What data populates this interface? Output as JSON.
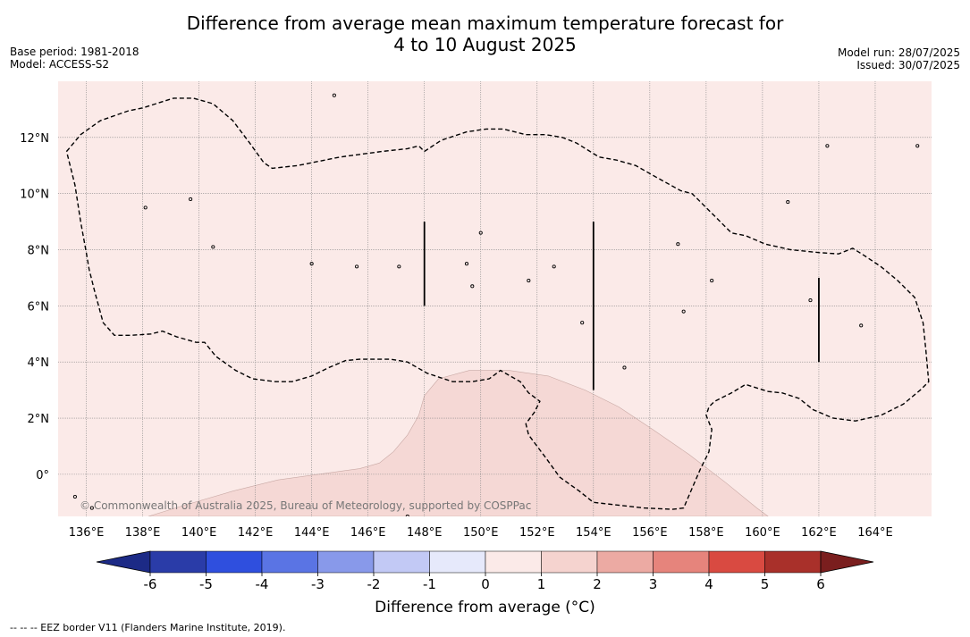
{
  "title_line1": "Difference from average mean maximum temperature forecast for",
  "title_line2": "4 to 10 August 2025",
  "base_period": "Base period: 1981-2018",
  "model": "Model: ACCESS-S2",
  "model_run": "Model run: 28/07/2025",
  "issued": "Issued: 30/07/2025",
  "copyright": "© Commonwealth of Australia 2025, Bureau of Meteorology, supported by COSPPac",
  "footnote": "--  --  -- EEZ border V11 (Flanders Marine Institute, 2019).",
  "colorbar_label": "Difference from average (°C)",
  "colors": {
    "background_anomaly": "#fbeae8",
    "warm_anomaly": "#f5d8d5",
    "colorbar": [
      "#2a3ca8",
      "#2f4fde",
      "#5a74e4",
      "#8899ea",
      "#c2c9f5",
      "#e6e9fb",
      "#fbeae8",
      "#f5d3cf",
      "#ecaaa3",
      "#e6847c",
      "#d94a41",
      "#a9302a"
    ],
    "extend_low": "#1c2a86",
    "extend_high": "#7a1e1e"
  },
  "map": {
    "lon_range": [
      135,
      166
    ],
    "lat_range": [
      -1.5,
      14
    ],
    "lon_ticks": [
      "136°E",
      "138°E",
      "140°E",
      "142°E",
      "144°E",
      "146°E",
      "148°E",
      "150°E",
      "152°E",
      "154°E",
      "156°E",
      "158°E",
      "160°E",
      "162°E",
      "164°E"
    ],
    "lon_values": [
      136,
      138,
      140,
      142,
      144,
      146,
      148,
      150,
      152,
      154,
      156,
      158,
      160,
      162,
      164
    ],
    "lat_ticks": [
      "12°N",
      "10°N",
      "8°N",
      "6°N",
      "4°N",
      "2°N",
      "0°"
    ],
    "lat_values": [
      12,
      10,
      8,
      6,
      4,
      2,
      0
    ],
    "eez_border": [
      [
        135.3,
        11.5
      ],
      [
        135.8,
        12.1
      ],
      [
        136.5,
        12.6
      ],
      [
        137.5,
        12.95
      ],
      [
        138,
        13.05
      ],
      [
        139.1,
        13.4
      ],
      [
        139.8,
        13.4
      ],
      [
        140.5,
        13.2
      ],
      [
        141.2,
        12.6
      ],
      [
        141.8,
        11.8
      ],
      [
        142.3,
        11.1
      ],
      [
        142.6,
        10.9
      ],
      [
        143.5,
        11
      ],
      [
        145,
        11.3
      ],
      [
        146.5,
        11.5
      ],
      [
        147.4,
        11.6
      ],
      [
        147.8,
        11.7
      ],
      [
        148,
        11.5
      ],
      [
        148.6,
        11.9
      ],
      [
        149.5,
        12.2
      ],
      [
        150.2,
        12.3
      ],
      [
        150.8,
        12.3
      ],
      [
        151.6,
        12.1
      ],
      [
        152.3,
        12.1
      ],
      [
        152.9,
        12
      ],
      [
        153.4,
        11.8
      ],
      [
        154.2,
        11.3
      ],
      [
        154.8,
        11.2
      ],
      [
        155.5,
        11
      ],
      [
        156.2,
        10.6
      ],
      [
        157.1,
        10.1
      ],
      [
        157.5,
        10
      ],
      [
        157.8,
        9.7
      ],
      [
        158.3,
        9.2
      ],
      [
        158.9,
        8.6
      ],
      [
        159.4,
        8.5
      ],
      [
        160.1,
        8.2
      ],
      [
        161,
        8
      ],
      [
        162,
        7.9
      ],
      [
        162.7,
        7.85
      ],
      [
        163.2,
        8.05
      ],
      [
        163.6,
        7.8
      ],
      [
        164.2,
        7.4
      ],
      [
        164.8,
        6.9
      ],
      [
        165.4,
        6.3
      ],
      [
        165.7,
        5.4
      ],
      [
        165.8,
        4.4
      ],
      [
        165.9,
        3.3
      ],
      [
        165.6,
        3
      ],
      [
        165,
        2.5
      ],
      [
        164.2,
        2.1
      ],
      [
        163.3,
        1.9
      ],
      [
        162.5,
        2
      ],
      [
        161.8,
        2.3
      ],
      [
        161.3,
        2.7
      ],
      [
        160.7,
        2.9
      ],
      [
        160.2,
        2.95
      ],
      [
        159.4,
        3.2
      ],
      [
        158.9,
        2.9
      ],
      [
        158.3,
        2.6
      ],
      [
        158.1,
        2.4
      ],
      [
        158,
        2.1
      ],
      [
        158.2,
        1.6
      ],
      [
        158.1,
        0.8
      ],
      [
        157.8,
        0.2
      ],
      [
        157.5,
        -0.5
      ],
      [
        157.2,
        -1.2
      ],
      [
        156.8,
        -1.25
      ],
      [
        155.8,
        -1.2
      ],
      [
        154,
        -1
      ],
      [
        153.5,
        -0.6
      ],
      [
        152.8,
        -0.1
      ],
      [
        152.3,
        0.6
      ],
      [
        151.7,
        1.4
      ],
      [
        151.6,
        1.8
      ],
      [
        151.9,
        2.2
      ],
      [
        152.1,
        2.6
      ],
      [
        151.7,
        2.9
      ],
      [
        151.4,
        3.3
      ],
      [
        150.7,
        3.7
      ],
      [
        150.3,
        3.4
      ],
      [
        149.7,
        3.3
      ],
      [
        149,
        3.3
      ],
      [
        148.1,
        3.6
      ],
      [
        147.4,
        4
      ],
      [
        146.8,
        4.1
      ],
      [
        146.3,
        4.1
      ],
      [
        145.7,
        4.1
      ],
      [
        145.2,
        4.05
      ],
      [
        144.6,
        3.8
      ],
      [
        144,
        3.5
      ],
      [
        143.3,
        3.3
      ],
      [
        142.7,
        3.3
      ],
      [
        141.9,
        3.4
      ],
      [
        141.3,
        3.7
      ],
      [
        140.6,
        4.2
      ],
      [
        140.2,
        4.7
      ],
      [
        139.9,
        4.7
      ],
      [
        139.2,
        4.9
      ],
      [
        138.7,
        5.1
      ],
      [
        138.3,
        5
      ],
      [
        137.6,
        4.95
      ],
      [
        137,
        4.95
      ],
      [
        136.6,
        5.4
      ],
      [
        136.3,
        6.5
      ],
      [
        136.1,
        7.3
      ],
      [
        136,
        7.9
      ],
      [
        135.8,
        9
      ],
      [
        135.6,
        10.3
      ],
      [
        135.3,
        11.5
      ]
    ],
    "warm_region": [
      [
        138.2,
        -1.5
      ],
      [
        139.5,
        -1.1
      ],
      [
        141.2,
        -0.6
      ],
      [
        142.8,
        -0.2
      ],
      [
        144.6,
        0.05
      ],
      [
        145.7,
        0.2
      ],
      [
        146.4,
        0.4
      ],
      [
        146.9,
        0.8
      ],
      [
        147.4,
        1.4
      ],
      [
        147.8,
        2.1
      ],
      [
        148.0,
        2.8
      ],
      [
        148.5,
        3.4
      ],
      [
        149.6,
        3.7
      ],
      [
        151.0,
        3.7
      ],
      [
        152.4,
        3.5
      ],
      [
        153.7,
        3.0
      ],
      [
        154.9,
        2.4
      ],
      [
        156.1,
        1.6
      ],
      [
        157.4,
        0.7
      ],
      [
        158.7,
        -0.3
      ],
      [
        159.8,
        -1.2
      ],
      [
        160.2,
        -1.5
      ]
    ],
    "vertical_lines": [
      [
        [
          148,
          9
        ],
        [
          148,
          6
        ]
      ],
      [
        [
          154,
          9
        ],
        [
          154,
          3
        ]
      ],
      [
        [
          162,
          7
        ],
        [
          162,
          4
        ]
      ]
    ],
    "islands": [
      [
        144.8,
        13.5
      ],
      [
        138.1,
        9.5
      ],
      [
        152.6,
        7.4
      ],
      [
        158.2,
        6.9
      ],
      [
        163.5,
        5.3
      ],
      [
        153.6,
        5.4
      ],
      [
        147.4,
        -1.5
      ],
      [
        135.6,
        -0.8
      ],
      [
        136.2,
        -1.2
      ],
      [
        157,
        8.2
      ],
      [
        140.5,
        8.1
      ],
      [
        145.6,
        7.4
      ],
      [
        147.1,
        7.4
      ],
      [
        149.5,
        7.5
      ],
      [
        151.7,
        6.9
      ],
      [
        149.7,
        6.7
      ],
      [
        161.7,
        6.2
      ],
      [
        157.2,
        5.8
      ],
      [
        155.1,
        3.8
      ],
      [
        162.3,
        11.7
      ],
      [
        165.5,
        11.7
      ],
      [
        160.9,
        9.7
      ],
      [
        139.7,
        9.8
      ],
      [
        150,
        8.6
      ],
      [
        144,
        7.5
      ]
    ]
  },
  "colorbar": {
    "tick_labels": [
      "-6",
      "-5",
      "-4",
      "-3",
      "-2",
      "-1",
      "0",
      "1",
      "2",
      "3",
      "4",
      "5",
      "6"
    ]
  }
}
